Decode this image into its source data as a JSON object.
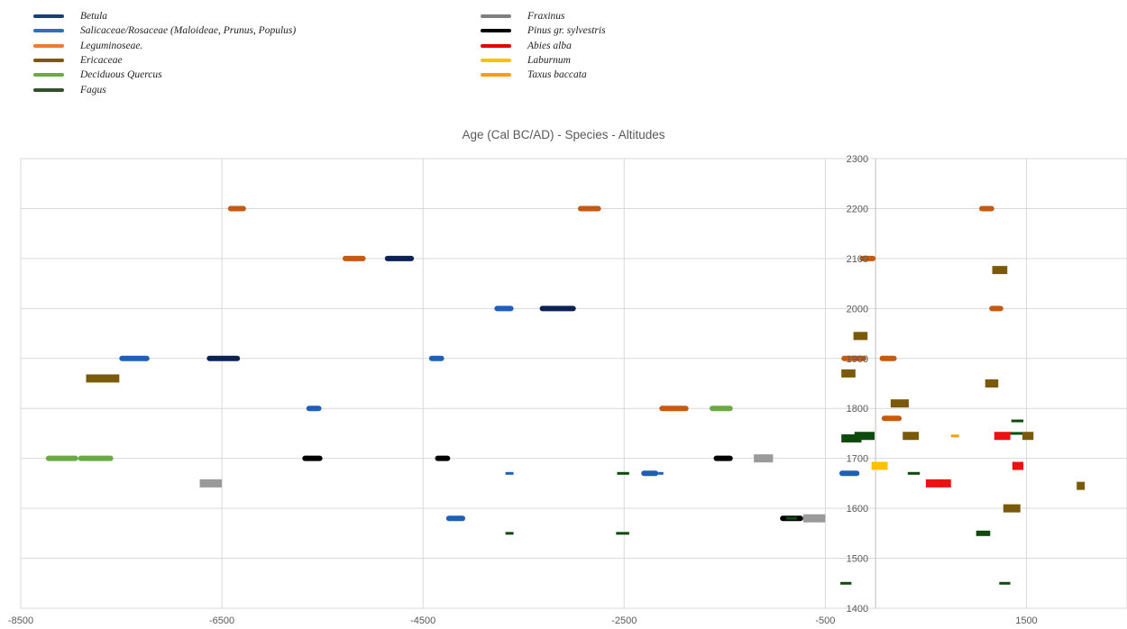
{
  "chart_data": {
    "type": "bar",
    "title": "Age (Cal BC/AD) - Species - Altitudes",
    "xlabel": "",
    "ylabel": "",
    "xlim": [
      -8500,
      2500
    ],
    "ylim": [
      1400,
      2300
    ],
    "x_ticks": [
      -8500,
      -6500,
      -4500,
      -2500,
      -500,
      1500
    ],
    "y_ticks": [
      1400,
      1500,
      1600,
      1700,
      1800,
      1900,
      2000,
      2100,
      2200,
      2300
    ],
    "grid": true,
    "legend_position": "top",
    "legend": [
      {
        "key": "betula",
        "name": "Betula",
        "color": "#1b3f7a"
      },
      {
        "key": "salicaceae",
        "name": "Salicaceae/Rosaceae (Maloideae, Prunus, Populus)",
        "color": "#2c6fc4"
      },
      {
        "key": "leguminoseae",
        "name": "Leguminoseae.",
        "color": "#ee7d31"
      },
      {
        "key": "ericaceae",
        "name": "Ericaceae",
        "color": "#7a5a08"
      },
      {
        "key": "quercus",
        "name": "Deciduous Quercus",
        "color": "#6aaa45"
      },
      {
        "key": "fagus",
        "name": "Fagus",
        "color": "#34502a"
      },
      {
        "key": "fraxinus",
        "name": "Fraxinus",
        "color": "#7f7f7f"
      },
      {
        "key": "pinus",
        "name": "Pinus gr. sylvestris",
        "color": "#000000"
      },
      {
        "key": "abies",
        "name": "Abies alba",
        "color": "#e00000"
      },
      {
        "key": "laburnum",
        "name": "Laburnum",
        "color": "#ffc000"
      },
      {
        "key": "taxus",
        "name": "Taxus baccata",
        "color": "#ff9c1a"
      }
    ],
    "series": [
      {
        "legend": "quercus",
        "color": "#6aaa45",
        "bars": [
          {
            "x0": -8250,
            "x1": -7930,
            "y": 1700
          },
          {
            "x0": -7930,
            "x1": -7580,
            "y": 1700
          },
          {
            "x0": -1650,
            "x1": -1420,
            "y": 1800
          }
        ]
      },
      {
        "legend": "ericaceae",
        "color": "#7a5a08",
        "bars": [
          {
            "x0": -7850,
            "x1": -7520,
            "y": 1860
          },
          {
            "x0": -340,
            "x1": -200,
            "y": 1870
          },
          {
            "x0": -220,
            "x1": -80,
            "y": 1945
          },
          {
            "x0": 150,
            "x1": 330,
            "y": 1810
          },
          {
            "x0": 270,
            "x1": 430,
            "y": 1745
          },
          {
            "x0": 1090,
            "x1": 1220,
            "y": 1850
          },
          {
            "x0": 1160,
            "x1": 1310,
            "y": 2077
          },
          {
            "x0": 1270,
            "x1": 1440,
            "y": 1600
          },
          {
            "x0": 1460,
            "x1": 1570,
            "y": 1745
          },
          {
            "x0": 2000,
            "x1": 2080,
            "y": 1645
          }
        ]
      },
      {
        "legend": "salicaceae",
        "color": "#1f5fb8",
        "bars": [
          {
            "x0": -7520,
            "x1": -7220,
            "y": 1900
          },
          {
            "x0": -5660,
            "x1": -5510,
            "y": 1800
          },
          {
            "x0": -4440,
            "x1": -4290,
            "y": 1900
          },
          {
            "x0": -3790,
            "x1": -3600,
            "y": 2000
          },
          {
            "x0": -4270,
            "x1": -4080,
            "y": 1580
          },
          {
            "x0": -3680,
            "x1": -3600,
            "y": 1670
          },
          {
            "x0": -2330,
            "x1": -2160,
            "y": 1670
          },
          {
            "x0": -2160,
            "x1": -2110,
            "y": 1670
          },
          {
            "x0": -360,
            "x1": -160,
            "y": 1670
          }
        ]
      },
      {
        "legend": "betula",
        "color": "#0c2254",
        "bars": [
          {
            "x0": -6650,
            "x1": -6320,
            "y": 1900
          },
          {
            "x0": -4880,
            "x1": -4590,
            "y": 2100
          },
          {
            "x0": -3340,
            "x1": -2980,
            "y": 2000
          }
        ]
      },
      {
        "legend": "leguminoseae",
        "color": "#c55a11",
        "bars": [
          {
            "x0": -6440,
            "x1": -6260,
            "y": 2200
          },
          {
            "x0": -5300,
            "x1": -5070,
            "y": 2100
          },
          {
            "x0": -2960,
            "x1": -2730,
            "y": 2200
          },
          {
            "x0": -2150,
            "x1": -1860,
            "y": 1800
          },
          {
            "x0": -340,
            "x1": -90,
            "y": 1900
          },
          {
            "x0": -160,
            "x1": 0,
            "y": 2100
          },
          {
            "x0": 40,
            "x1": 210,
            "y": 1900
          },
          {
            "x0": 60,
            "x1": 260,
            "y": 1780
          },
          {
            "x0": 1030,
            "x1": 1180,
            "y": 2200
          },
          {
            "x0": 1130,
            "x1": 1270,
            "y": 2000
          }
        ]
      },
      {
        "legend": "fraxinus",
        "color": "#9a9a9a",
        "bars": [
          {
            "x0": -6720,
            "x1": -6500,
            "y": 1650
          },
          {
            "x0": -1210,
            "x1": -1020,
            "y": 1700
          },
          {
            "x0": -720,
            "x1": -500,
            "y": 1580
          }
        ]
      },
      {
        "legend": "pinus",
        "color": "#000000",
        "bars": [
          {
            "x0": -5700,
            "x1": -5500,
            "y": 1700
          },
          {
            "x0": -4380,
            "x1": -4230,
            "y": 1700
          },
          {
            "x0": -1610,
            "x1": -1420,
            "y": 1700
          },
          {
            "x0": -950,
            "x1": -720,
            "y": 1580
          }
        ]
      },
      {
        "legend": "fagus",
        "color": "#0e4a0e",
        "bars": [
          {
            "x0": -3680,
            "x1": -3600,
            "y": 1550
          },
          {
            "x0": -2570,
            "x1": -2450,
            "y": 1670
          },
          {
            "x0": -2580,
            "x1": -2450,
            "y": 1550
          },
          {
            "x0": -890,
            "x1": -780,
            "y": 1580
          },
          {
            "x0": -350,
            "x1": -240,
            "y": 1450
          },
          {
            "x0": -340,
            "x1": -140,
            "y": 1740
          },
          {
            "x0": -210,
            "x1": -10,
            "y": 1745
          },
          {
            "x0": 320,
            "x1": 440,
            "y": 1670
          },
          {
            "x0": 1000,
            "x1": 1140,
            "y": 1550
          },
          {
            "x0": 1230,
            "x1": 1340,
            "y": 1450
          },
          {
            "x0": 1330,
            "x1": 1460,
            "y": 1750
          },
          {
            "x0": 1350,
            "x1": 1470,
            "y": 1775
          }
        ]
      },
      {
        "legend": "laburnum",
        "color": "#ffc000",
        "bars": [
          {
            "x0": -40,
            "x1": 120,
            "y": 1685
          }
        ]
      },
      {
        "legend": "abies",
        "color": "#ee1111",
        "bars": [
          {
            "x0": 500,
            "x1": 660,
            "y": 1650
          },
          {
            "x0": 640,
            "x1": 750,
            "y": 1650
          },
          {
            "x0": 1180,
            "x1": 1340,
            "y": 1745
          },
          {
            "x0": 1360,
            "x1": 1470,
            "y": 1685
          }
        ]
      },
      {
        "legend": "taxus",
        "color": "#ff9c1a",
        "bars": [
          {
            "x0": 750,
            "x1": 830,
            "y": 1745
          }
        ]
      }
    ]
  }
}
